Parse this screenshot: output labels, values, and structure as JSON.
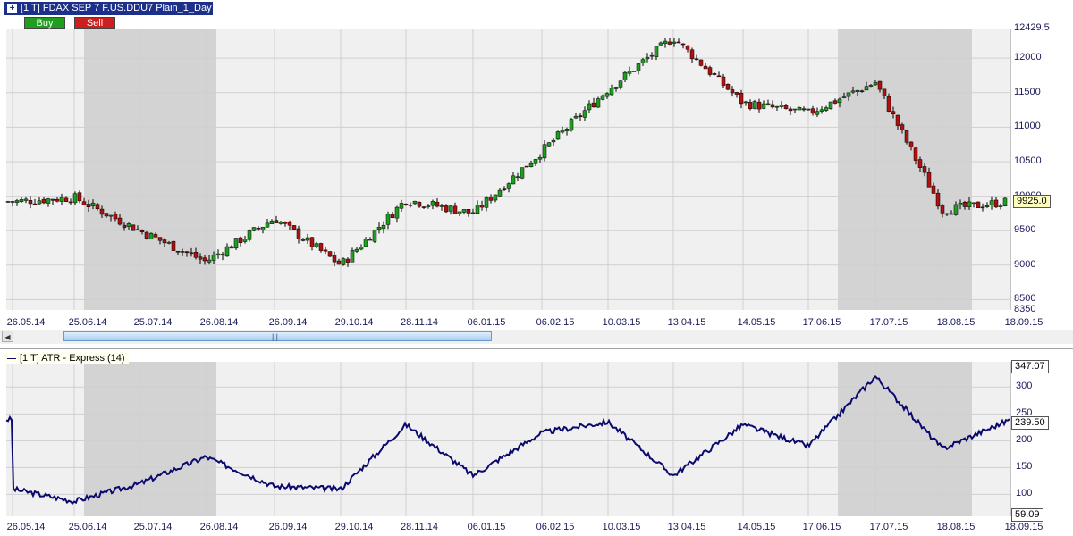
{
  "window": {
    "title": "[1 T] FDAX SEP 7    F.US.DDU7 Plain_1_Day"
  },
  "order_buttons": {
    "buy_label": "Buy",
    "sell_label": "Sell"
  },
  "price_chart": {
    "y_ticks": [
      "12429.5",
      "12000",
      "11500",
      "11000",
      "10500",
      "10000",
      "9500",
      "9000",
      "8500",
      "8350"
    ],
    "current_price_label": "9925.0",
    "x_ticks": [
      "26.05.14",
      "25.06.14",
      "25.07.14",
      "26.08.14",
      "26.09.14",
      "29.10.14",
      "28.11.14",
      "06.01.15",
      "06.02.15",
      "10.03.15",
      "13.04.15",
      "14.05.15",
      "17.06.15",
      "17.07.15",
      "18.08.15",
      "18.09.15"
    ]
  },
  "indicator": {
    "label": "[1 T] ATR - Express  (14)",
    "y_ticks": [
      "300",
      "250",
      "200",
      "150",
      "100"
    ],
    "max_label": "347.07",
    "current_label": "239.50",
    "min_label": "59.09",
    "x_ticks": [
      "26.05.14",
      "25.06.14",
      "25.07.14",
      "26.08.14",
      "26.09.14",
      "29.10.14",
      "28.11.14",
      "06.01.15",
      "06.02.15",
      "10.03.15",
      "13.04.15",
      "14.05.15",
      "17.06.15",
      "17.07.15",
      "18.08.15",
      "18.09.15"
    ]
  },
  "chart_data": [
    {
      "type": "candlestick",
      "series": [
        {
          "name": "FDAX SEP 7",
          "x": [
            "26.05.14",
            "25.06.14",
            "25.07.14",
            "26.08.14",
            "26.09.14",
            "29.10.14",
            "28.11.14",
            "06.01.15",
            "06.02.15",
            "10.03.15",
            "13.04.15",
            "14.05.15",
            "17.06.15",
            "17.07.15",
            "18.08.15",
            "18.09.15"
          ],
          "close": [
            9920,
            9980,
            9500,
            9050,
            9680,
            9000,
            9950,
            9750,
            10650,
            11550,
            12300,
            11350,
            11200,
            11650,
            9800,
            9925
          ]
        }
      ],
      "ylim": [
        8350,
        12429.5
      ],
      "colors": {
        "up": "#1f9d1f",
        "down": "#b01010",
        "wick": "#000000",
        "shade": "#d3d3d3",
        "bg": "#f0f0f0"
      }
    },
    {
      "type": "line",
      "series": [
        {
          "name": "ATR - Express (14)",
          "x": [
            "26.05.14",
            "25.06.14",
            "25.07.14",
            "26.08.14",
            "26.09.14",
            "29.10.14",
            "28.11.14",
            "06.01.15",
            "06.02.15",
            "10.03.15",
            "13.04.15",
            "14.05.15",
            "17.06.15",
            "17.07.15",
            "18.08.15",
            "18.09.15"
          ],
          "values": [
            110,
            87,
            120,
            170,
            115,
            110,
            230,
            135,
            215,
            235,
            135,
            230,
            190,
            320,
            185,
            239.5
          ]
        }
      ],
      "ylim": [
        59.09,
        347.07
      ],
      "colors": {
        "line": "#0a0a6e"
      }
    }
  ]
}
